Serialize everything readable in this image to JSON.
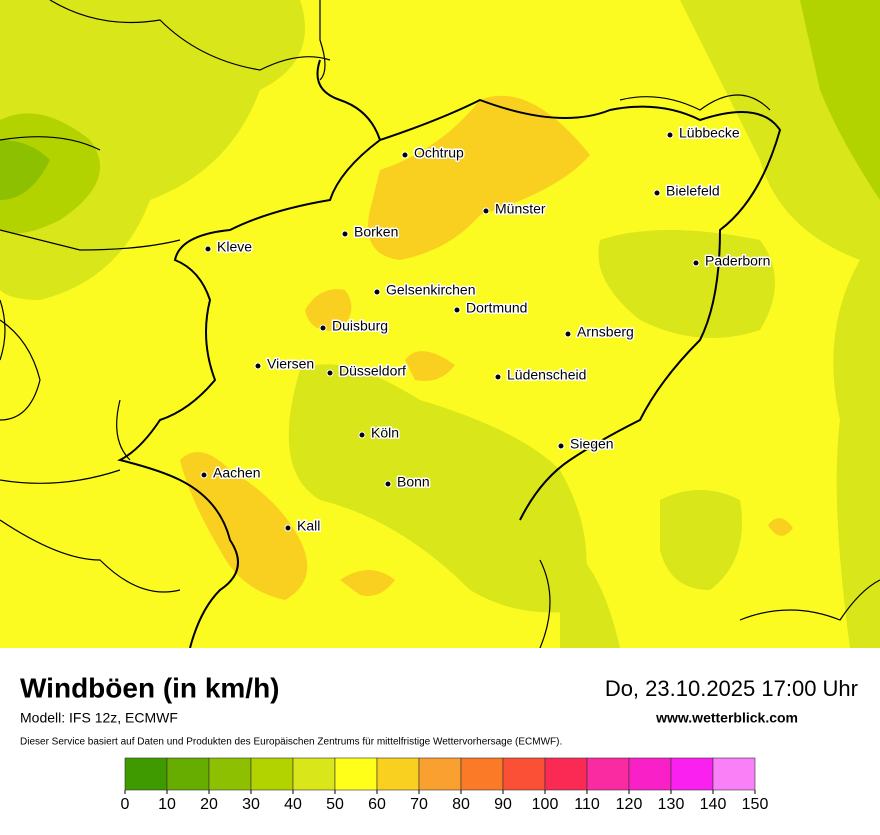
{
  "map": {
    "cities": [
      "Ochtrup",
      "Münster",
      "Lübbecke",
      "Bielefeld",
      "Paderborn",
      "Borken",
      "Kleve",
      "Gelsenkirchen",
      "Dortmund",
      "Duisburg",
      "Arnsberg",
      "Viersen",
      "Düsseldorf",
      "Lüdenscheid",
      "Köln",
      "Siegen",
      "Aachen",
      "Bonn",
      "Kall"
    ]
  },
  "footer": {
    "title": "Windböen (in km/h)",
    "datetime": "Do, 23.10.2025 17:00 Uhr",
    "model": "Modell: IFS 12z, ECMWF",
    "website": "www.wetterblick.com",
    "disclaimer": "Dieser Service basiert auf Daten und Produkten des Europäischen Zentrums für mittelfristige Wettervorhersage (ECMWF)."
  },
  "legend": {
    "ticks": [
      0,
      10,
      20,
      30,
      40,
      50,
      60,
      70,
      80,
      90,
      100,
      110,
      120,
      130,
      140,
      150
    ],
    "colors": [
      "#3f9a00",
      "#66ad00",
      "#8cc000",
      "#b3d300",
      "#d9e61a",
      "#ffff1a",
      "#f9cf20",
      "#f9a030",
      "#fa7a28",
      "#fb5035",
      "#fb2a55",
      "#fa2aa0",
      "#fa20c8",
      "#fa20f0",
      "#fa80f8"
    ]
  }
}
